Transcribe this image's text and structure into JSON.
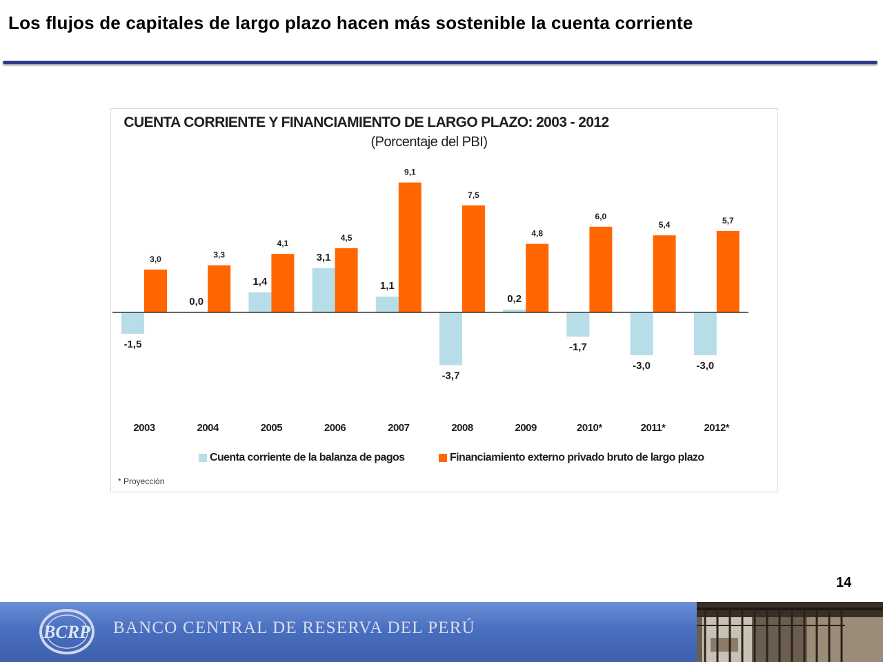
{
  "slide": {
    "title": "Los flujos de capitales de largo plazo hacen más sostenible la cuenta corriente",
    "page_number": "14"
  },
  "chart_data": {
    "type": "bar",
    "title": "CUENTA CORRIENTE Y FINANCIAMIENTO DE LARGO PLAZO: 2003 - 2012",
    "subtitle": "(Porcentaje del PBI)",
    "categories": [
      "2003",
      "2004",
      "2005",
      "2006",
      "2007",
      "2008",
      "2009",
      "2010*",
      "2011*",
      "2012*"
    ],
    "series": [
      {
        "name": "Cuenta corriente de la balanza de pagos",
        "color": "#b7dde8",
        "values": [
          -1.5,
          0.0,
          1.4,
          3.1,
          1.1,
          -3.7,
          0.2,
          -1.7,
          -3.0,
          -3.0
        ],
        "labels": [
          "-1,5",
          "0,0",
          "1,4",
          "3,1",
          "1,1",
          "-3,7",
          "0,2",
          "-1,7",
          "-3,0",
          "-3,0"
        ]
      },
      {
        "name": "Financiamiento externo privado bruto de largo plazo",
        "color": "#ff6600",
        "values": [
          3.0,
          3.3,
          4.1,
          4.5,
          9.1,
          7.5,
          4.8,
          6.0,
          5.4,
          5.7
        ],
        "labels": [
          "3,0",
          "3,3",
          "4,1",
          "4,5",
          "9,1",
          "7,5",
          "4,8",
          "6,0",
          "5,4",
          "5,7"
        ]
      }
    ],
    "ylim": [
      -3.7,
      9.1
    ],
    "grid": false,
    "legend_position": "bottom",
    "note": "* Proyección"
  },
  "footer": {
    "bank_name": "BANCO CENTRAL DE RESERVA DEL PERÚ",
    "logo_text": "BCRP"
  }
}
